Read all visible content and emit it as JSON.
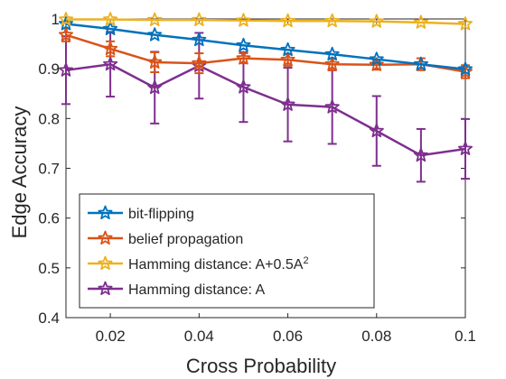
{
  "chart_data": {
    "type": "line",
    "title": "",
    "xlabel": "Cross Probability",
    "ylabel": "Edge Accuracy",
    "xlim": [
      0.01,
      0.1
    ],
    "ylim": [
      0.4,
      1.0
    ],
    "xticks": [
      0.02,
      0.04,
      0.06,
      0.08,
      0.1
    ],
    "xtick_labels": [
      "0.02",
      "0.04",
      "0.06",
      "0.08",
      "0.1"
    ],
    "yticks": [
      0.4,
      0.5,
      0.6,
      0.7,
      0.8,
      0.9,
      1.0
    ],
    "ytick_labels": [
      "0.4",
      "0.5",
      "0.6",
      "0.7",
      "0.8",
      "0.9",
      "1"
    ],
    "grid": false,
    "legend_position": "bottom-left",
    "x": [
      0.01,
      0.02,
      0.03,
      0.04,
      0.05,
      0.06,
      0.07,
      0.08,
      0.09,
      0.1
    ],
    "series": [
      {
        "name": "bit-flipping",
        "color": "#0072BD",
        "marker": "star",
        "values": [
          0.99,
          0.98,
          0.968,
          0.958,
          0.947,
          0.938,
          0.929,
          0.919,
          0.909,
          0.899
        ],
        "error": [
          0,
          0,
          0,
          0,
          0,
          0,
          0,
          0,
          0,
          0
        ]
      },
      {
        "name": "belief propagation",
        "color": "#D95319",
        "marker": "star",
        "values": [
          0.968,
          0.94,
          0.913,
          0.911,
          0.921,
          0.918,
          0.909,
          0.908,
          0.909,
          0.894
        ],
        "error": [
          0.013,
          0.015,
          0.02,
          0.02,
          0.01,
          0.012,
          0.012,
          0.01,
          0.012,
          0.013
        ]
      },
      {
        "name": "Hamming distance: A+0.5A",
        "name_superscript": "2",
        "color": "#EDB120",
        "marker": "star",
        "values": [
          0.999,
          0.999,
          0.998,
          0.998,
          0.997,
          0.996,
          0.996,
          0.995,
          0.993,
          0.99
        ],
        "error": [
          0,
          0,
          0,
          0,
          0,
          0,
          0,
          0,
          0,
          0
        ]
      },
      {
        "name": "Hamming distance: A",
        "color": "#7E2F8E",
        "marker": "star",
        "values": [
          0.897,
          0.909,
          0.862,
          0.906,
          0.863,
          0.828,
          0.823,
          0.775,
          0.726,
          0.739
        ],
        "error": [
          0.068,
          0.065,
          0.072,
          0.066,
          0.07,
          0.074,
          0.074,
          0.07,
          0.053,
          0.06
        ]
      }
    ]
  }
}
